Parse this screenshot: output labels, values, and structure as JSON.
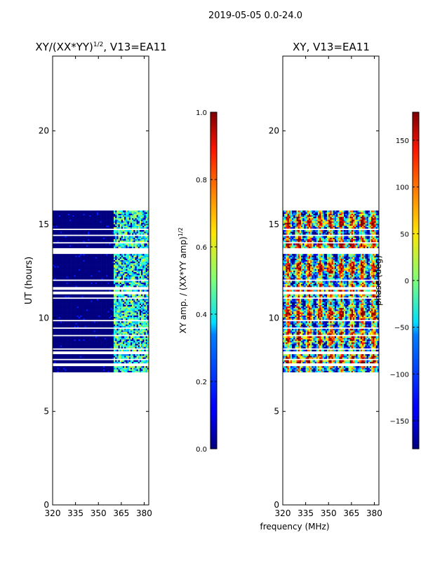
{
  "suptitle": "2019-05-05 0.0-24.0",
  "chart_data": [
    {
      "type": "heatmap",
      "title_main": "XY/(XX*YY)",
      "title_sup": "1/2",
      "title_rest": ", V13=EA11",
      "xlabel": "",
      "ylabel": "UT (hours)",
      "xlim": [
        320,
        383
      ],
      "ylim": [
        0,
        24
      ],
      "xticks": [
        320,
        335,
        350,
        365,
        380
      ],
      "yticks": [
        0,
        5,
        10,
        15,
        20
      ],
      "data_time_range": [
        7.1,
        15.7
      ],
      "high_amp_freq_start": 360,
      "gap_rows_hours": [
        7.45,
        7.75,
        8.1,
        8.3,
        9.0,
        9.4,
        9.8,
        11.0,
        11.3,
        11.55,
        12.0,
        13.4,
        13.55,
        13.65,
        14.0,
        14.4,
        14.7
      ],
      "colormap": "jet"
    },
    {
      "type": "heatmap",
      "title": "XY, V13=EA11",
      "xlabel": "frequency (MHz)",
      "ylabel": "",
      "xlim": [
        320,
        383
      ],
      "ylim": [
        0,
        24
      ],
      "xticks": [
        320,
        335,
        350,
        365,
        380
      ],
      "yticks": [
        0,
        5,
        10,
        15,
        20
      ],
      "data_time_range": [
        7.1,
        15.7
      ],
      "gap_rows_hours": [
        7.45,
        7.75,
        8.1,
        8.3,
        9.0,
        9.4,
        9.8,
        11.0,
        11.3,
        11.55,
        12.0,
        13.4,
        13.55,
        13.65,
        14.0,
        14.4,
        14.7
      ],
      "colormap": "jet"
    }
  ],
  "colorbar_amp": {
    "label_main": "XY amp. / (XX*YY amp)",
    "label_sup": "1/2",
    "range": [
      0.0,
      1.0
    ],
    "ticks": [
      "0.0",
      "0.2",
      "0.4",
      "0.6",
      "0.8",
      "1.0"
    ]
  },
  "colorbar_phase": {
    "label": "phase (deg)",
    "range": [
      -180,
      180
    ],
    "ticks": [
      "−150",
      "−100",
      "−50",
      "0",
      "50",
      "100",
      "150"
    ],
    "tick_values": [
      -150,
      -100,
      -50,
      0,
      50,
      100,
      150
    ]
  }
}
